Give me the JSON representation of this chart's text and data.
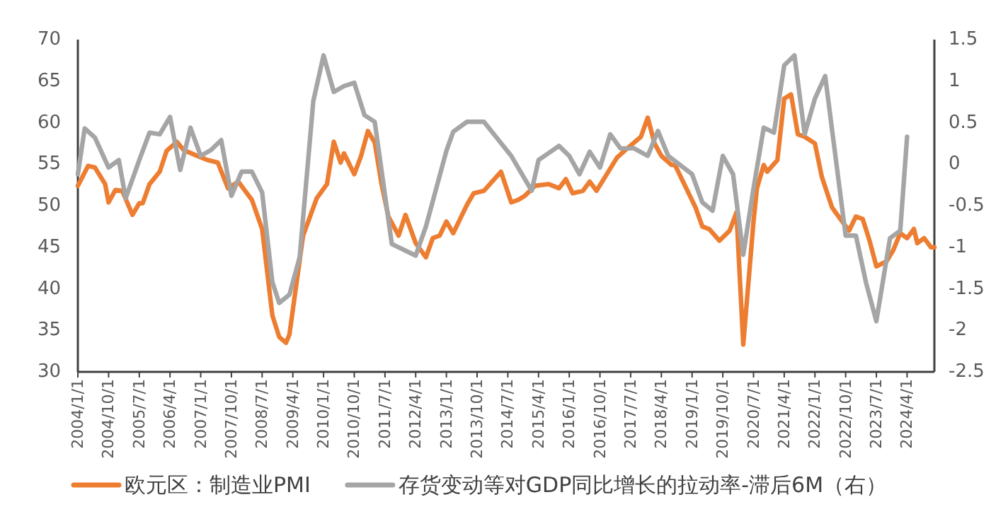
{
  "chart_data": {
    "type": "line",
    "legend": "bottom",
    "xlim": [
      "2004-01",
      "2024-12"
    ],
    "xticks": [
      {
        "value": "2004-01",
        "label": "2004/1/1"
      },
      {
        "value": "2004-10",
        "label": "2004/10/1"
      },
      {
        "value": "2005-07",
        "label": "2005/7/1"
      },
      {
        "value": "2006-04",
        "label": "2006/4/1"
      },
      {
        "value": "2007-01",
        "label": "2007/1/1"
      },
      {
        "value": "2007-10",
        "label": "2007/10/1"
      },
      {
        "value": "2008-07",
        "label": "2008/7/1"
      },
      {
        "value": "2009-04",
        "label": "2009/4/1"
      },
      {
        "value": "2010-01",
        "label": "2010/1/1"
      },
      {
        "value": "2010-10",
        "label": "2010/10/1"
      },
      {
        "value": "2011-07",
        "label": "2011/7/1"
      },
      {
        "value": "2012-04",
        "label": "2012/4/1"
      },
      {
        "value": "2013-01",
        "label": "2013/1/1"
      },
      {
        "value": "2013-10",
        "label": "2013/10/1"
      },
      {
        "value": "2014-07",
        "label": "2014/7/1"
      },
      {
        "value": "2015-04",
        "label": "2015/4/1"
      },
      {
        "value": "2016-01",
        "label": "2016/1/1"
      },
      {
        "value": "2016-10",
        "label": "2016/10/1"
      },
      {
        "value": "2017-07",
        "label": "2017/7/1"
      },
      {
        "value": "2018-04",
        "label": "2018/4/1"
      },
      {
        "value": "2019-01",
        "label": "2019/1/1"
      },
      {
        "value": "2019-10",
        "label": "2019/10/1"
      },
      {
        "value": "2020-07",
        "label": "2020/7/1"
      },
      {
        "value": "2021-04",
        "label": "2021/4/1"
      },
      {
        "value": "2022-01",
        "label": "2022/1/1"
      },
      {
        "value": "2022-10",
        "label": "2022/10/1"
      },
      {
        "value": "2023-07",
        "label": "2023/7/1"
      },
      {
        "value": "2024-04",
        "label": "2024/4/1"
      }
    ],
    "ylim": [
      30,
      70
    ],
    "yticks": [
      30,
      35,
      40,
      45,
      50,
      55,
      60,
      65,
      70
    ],
    "y2lim": [
      -2.5,
      1.5
    ],
    "y2ticks": [
      -2.5,
      -2,
      -1.5,
      -1,
      -0.5,
      0,
      0.5,
      1,
      1.5
    ],
    "series": [
      {
        "name": "欧元区：制造业PMI",
        "color": "#ed7d31",
        "x": [
          "2004-01",
          "2004-04",
          "2004-06",
          "2004-09",
          "2004-10",
          "2004-12",
          "2005-02",
          "2005-05",
          "2005-07",
          "2005-08",
          "2005-10",
          "2006-01",
          "2006-03",
          "2006-06",
          "2006-08",
          "2006-12",
          "2007-03",
          "2007-06",
          "2007-09",
          "2007-12",
          "2008-04",
          "2008-07",
          "2008-10",
          "2008-12",
          "2009-02",
          "2009-03",
          "2009-07",
          "2009-11",
          "2010-02",
          "2010-04",
          "2010-06",
          "2010-07",
          "2010-10",
          "2010-12",
          "2011-02",
          "2011-04",
          "2011-06",
          "2011-08",
          "2011-11",
          "2012-01",
          "2012-04",
          "2012-07",
          "2012-09",
          "2012-11",
          "2013-01",
          "2013-03",
          "2013-07",
          "2013-09",
          "2013-12",
          "2014-05",
          "2014-08",
          "2014-10",
          "2014-12",
          "2015-03",
          "2015-07",
          "2015-10",
          "2015-12",
          "2016-02",
          "2016-05",
          "2016-07",
          "2016-09",
          "2016-12",
          "2017-03",
          "2017-06",
          "2017-10",
          "2017-12",
          "2018-02",
          "2018-04",
          "2018-07",
          "2018-08",
          "2018-12",
          "2019-02",
          "2019-04",
          "2019-06",
          "2019-09",
          "2019-12",
          "2020-02",
          "2020-04",
          "2020-07",
          "2020-08",
          "2020-10",
          "2020-11",
          "2021-02",
          "2021-04",
          "2021-06",
          "2021-08",
          "2021-10",
          "2022-01",
          "2022-03",
          "2022-06",
          "2022-09",
          "2022-11",
          "2023-01",
          "2023-03",
          "2023-05",
          "2023-07",
          "2023-10",
          "2023-12",
          "2024-02",
          "2024-04",
          "2024-06",
          "2024-07",
          "2024-09",
          "2024-11",
          "2024-12"
        ],
        "values": [
          52.4,
          54.8,
          54.6,
          52.6,
          50.4,
          51.9,
          51.8,
          48.9,
          50.3,
          50.3,
          52.6,
          54.1,
          56.6,
          57.7,
          56.7,
          56.0,
          55.5,
          55.2,
          52.1,
          52.9,
          50.7,
          47.2,
          36.8,
          34.2,
          33.5,
          34.5,
          46.4,
          50.9,
          52.6,
          57.7,
          55.2,
          56.3,
          53.8,
          56.0,
          59.0,
          57.6,
          52.6,
          48.7,
          46.4,
          48.9,
          45.5,
          43.8,
          46.1,
          46.4,
          48.1,
          46.7,
          50.1,
          51.5,
          51.8,
          54.1,
          50.4,
          50.7,
          51.2,
          52.4,
          52.6,
          52.1,
          53.2,
          51.5,
          51.8,
          52.9,
          51.8,
          53.8,
          55.8,
          56.9,
          58.3,
          60.6,
          57.5,
          56.0,
          54.9,
          54.9,
          51.5,
          49.8,
          47.5,
          47.2,
          45.8,
          47.0,
          49.2,
          33.3,
          48.1,
          52.1,
          54.9,
          54.1,
          55.5,
          62.9,
          63.4,
          58.6,
          58.3,
          57.5,
          53.5,
          49.8,
          48.1,
          47.0,
          48.7,
          48.4,
          45.8,
          42.7,
          43.3,
          44.7,
          46.7,
          46.1,
          47.2,
          45.5,
          46.1,
          45.0,
          45.0
        ]
      },
      {
        "name": "存货变动等对GDP同比增长的拉动率-滞后6M（右）",
        "color": "#a5a5a5",
        "axis": "y2",
        "x": [
          "2004-01",
          "2004-03",
          "2004-06",
          "2004-10",
          "2005-01",
          "2005-03",
          "2005-07",
          "2005-10",
          "2006-01",
          "2006-04",
          "2006-07",
          "2006-10",
          "2007-01",
          "2007-04",
          "2007-07",
          "2007-10",
          "2008-01",
          "2008-04",
          "2008-07",
          "2008-10",
          "2008-12",
          "2009-03",
          "2009-06",
          "2009-10",
          "2010-01",
          "2010-04",
          "2010-07",
          "2010-10",
          "2011-01",
          "2011-04",
          "2011-09",
          "2012-04",
          "2012-07",
          "2013-01",
          "2013-03",
          "2013-07",
          "2013-12",
          "2014-08",
          "2015-02",
          "2015-04",
          "2015-10",
          "2016-01",
          "2016-04",
          "2016-07",
          "2016-10",
          "2017-01",
          "2017-04",
          "2017-08",
          "2017-12",
          "2018-03",
          "2018-06",
          "2019-01",
          "2019-04",
          "2019-07",
          "2019-10",
          "2020-01",
          "2020-04",
          "2020-07",
          "2020-10",
          "2021-01",
          "2021-04",
          "2021-07",
          "2021-10",
          "2022-01",
          "2022-04",
          "2022-07",
          "2022-10",
          "2023-01",
          "2023-04",
          "2023-07",
          "2023-11",
          "2024-02",
          "2024-04"
        ],
        "values": [
          -0.12,
          0.43,
          0.32,
          -0.04,
          0.05,
          -0.41,
          0.05,
          0.38,
          0.36,
          0.57,
          -0.07,
          0.44,
          0.1,
          0.17,
          0.29,
          -0.38,
          -0.09,
          -0.09,
          -0.34,
          -1.42,
          -1.67,
          -1.57,
          -1.12,
          0.76,
          1.31,
          0.87,
          0.94,
          0.98,
          0.59,
          0.51,
          -0.96,
          -1.1,
          -0.75,
          0.16,
          0.39,
          0.51,
          0.51,
          0.1,
          -0.32,
          0.05,
          0.22,
          0.1,
          -0.12,
          0.15,
          -0.04,
          0.36,
          0.19,
          0.19,
          0.1,
          0.4,
          0.1,
          -0.12,
          -0.46,
          -0.56,
          0.1,
          -0.12,
          -1.09,
          -0.29,
          0.44,
          0.38,
          1.19,
          1.31,
          0.36,
          0.79,
          1.06,
          0.1,
          -0.86,
          -0.86,
          -1.43,
          -1.89,
          -0.89,
          -0.8,
          0.33
        ]
      }
    ]
  }
}
